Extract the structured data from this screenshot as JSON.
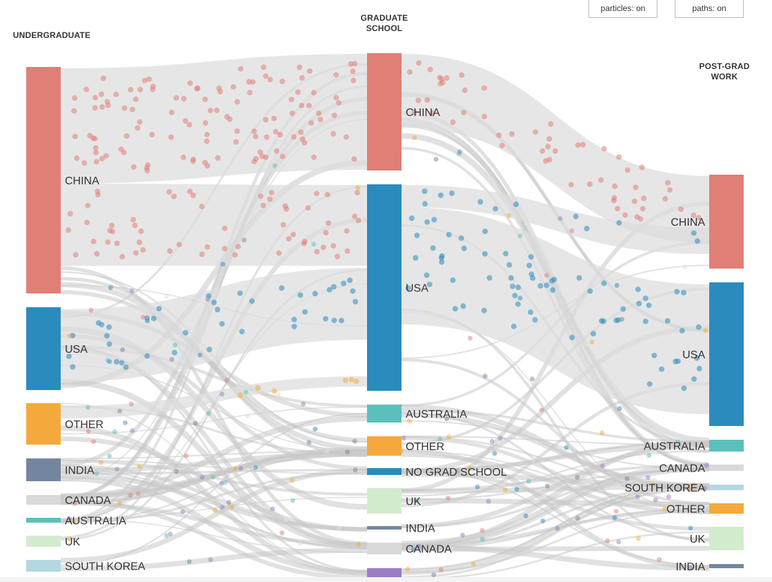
{
  "controls": {
    "particles_label": "particles: on",
    "paths_label": "paths: on"
  },
  "columns": [
    {
      "key": "undergrad",
      "label": "UNDERGRADUATE"
    },
    {
      "key": "grad",
      "label": "GRADUATE SCHOOL"
    },
    {
      "key": "postgrad",
      "label": "POST-GRAD WORK"
    }
  ],
  "colors": {
    "china": "#e07f76",
    "usa": "#2b8bbd",
    "other": "#f5a93c",
    "india": "#74869f",
    "canada": "#d9d9d9",
    "australia": "#5bc0bb",
    "uk": "#d3eccd",
    "south_korea": "#b3d8e2",
    "no_grad_school": "#2b8bbd",
    "japan_like": "#9b7ec4",
    "link": "#dcdcdc",
    "path_line": "#c8c8c8"
  },
  "chart_data": {
    "type": "sankey",
    "stages": [
      "UNDERGRADUATE",
      "GRADUATE SCHOOL",
      "POST-GRAD WORK"
    ],
    "nodes": {
      "undergrad": [
        {
          "id": "u_china",
          "label": "CHINA",
          "color_key": "china",
          "size": 100
        },
        {
          "id": "u_usa",
          "label": "USA",
          "color_key": "usa",
          "size": 36
        },
        {
          "id": "u_other",
          "label": "OTHER",
          "color_key": "other",
          "size": 18
        },
        {
          "id": "u_india",
          "label": "INDIA",
          "color_key": "india",
          "size": 10
        },
        {
          "id": "u_canada",
          "label": "CANADA",
          "color_key": "canada",
          "size": 4
        },
        {
          "id": "u_australia",
          "label": "AUSTRALIA",
          "color_key": "australia",
          "size": 2
        },
        {
          "id": "u_uk",
          "label": "UK",
          "color_key": "uk",
          "size": 5
        },
        {
          "id": "u_skorea",
          "label": "SOUTH KOREA",
          "color_key": "south_korea",
          "size": 5
        }
      ],
      "grad": [
        {
          "id": "g_china",
          "label": "CHINA",
          "color_key": "china",
          "size": 52
        },
        {
          "id": "g_usa",
          "label": "USA",
          "color_key": "usa",
          "size": 91
        },
        {
          "id": "g_australia",
          "label": "AUSTRALIA",
          "color_key": "australia",
          "size": 8
        },
        {
          "id": "g_other",
          "label": "OTHER",
          "color_key": "other",
          "size": 8
        },
        {
          "id": "g_nograd",
          "label": "NO GRAD SCHOOL",
          "color_key": "no_grad_school",
          "size": 3
        },
        {
          "id": "g_uk",
          "label": "UK",
          "color_key": "uk",
          "size": 11
        },
        {
          "id": "g_india",
          "label": "INDIA",
          "color_key": "india",
          "size": 1
        },
        {
          "id": "g_canada",
          "label": "CANADA",
          "color_key": "canada",
          "size": 5
        },
        {
          "id": "g_extra",
          "label": "",
          "color_key": "japan_like",
          "size": 5
        }
      ],
      "postgrad": [
        {
          "id": "p_china",
          "label": "CHINA",
          "color_key": "china",
          "size": 42
        },
        {
          "id": "p_usa",
          "label": "USA",
          "color_key": "usa",
          "size": 64
        },
        {
          "id": "p_australia",
          "label": "AUSTRALIA",
          "color_key": "australia",
          "size": 5
        },
        {
          "id": "p_canada",
          "label": "CANADA",
          "color_key": "canada",
          "size": 3
        },
        {
          "id": "p_skorea",
          "label": "SOUTH KOREA",
          "color_key": "south_korea",
          "size": 2
        },
        {
          "id": "p_other",
          "label": "OTHER",
          "color_key": "other",
          "size": 5
        },
        {
          "id": "p_uk",
          "label": "UK",
          "color_key": "uk",
          "size": 10
        },
        {
          "id": "p_india",
          "label": "INDIA",
          "color_key": "india",
          "size": 2
        }
      ]
    },
    "major_flows": [
      {
        "from": "u_china",
        "to": "g_china",
        "value": 45
      },
      {
        "from": "u_china",
        "to": "g_usa",
        "value": 35
      },
      {
        "from": "u_usa",
        "to": "g_usa",
        "value": 28
      },
      {
        "from": "u_other",
        "to": "g_usa",
        "value": 6
      },
      {
        "from": "g_china",
        "to": "p_china",
        "value": 35
      },
      {
        "from": "g_usa",
        "to": "p_china",
        "value": 10
      },
      {
        "from": "g_usa",
        "to": "p_usa",
        "value": 55
      }
    ]
  }
}
